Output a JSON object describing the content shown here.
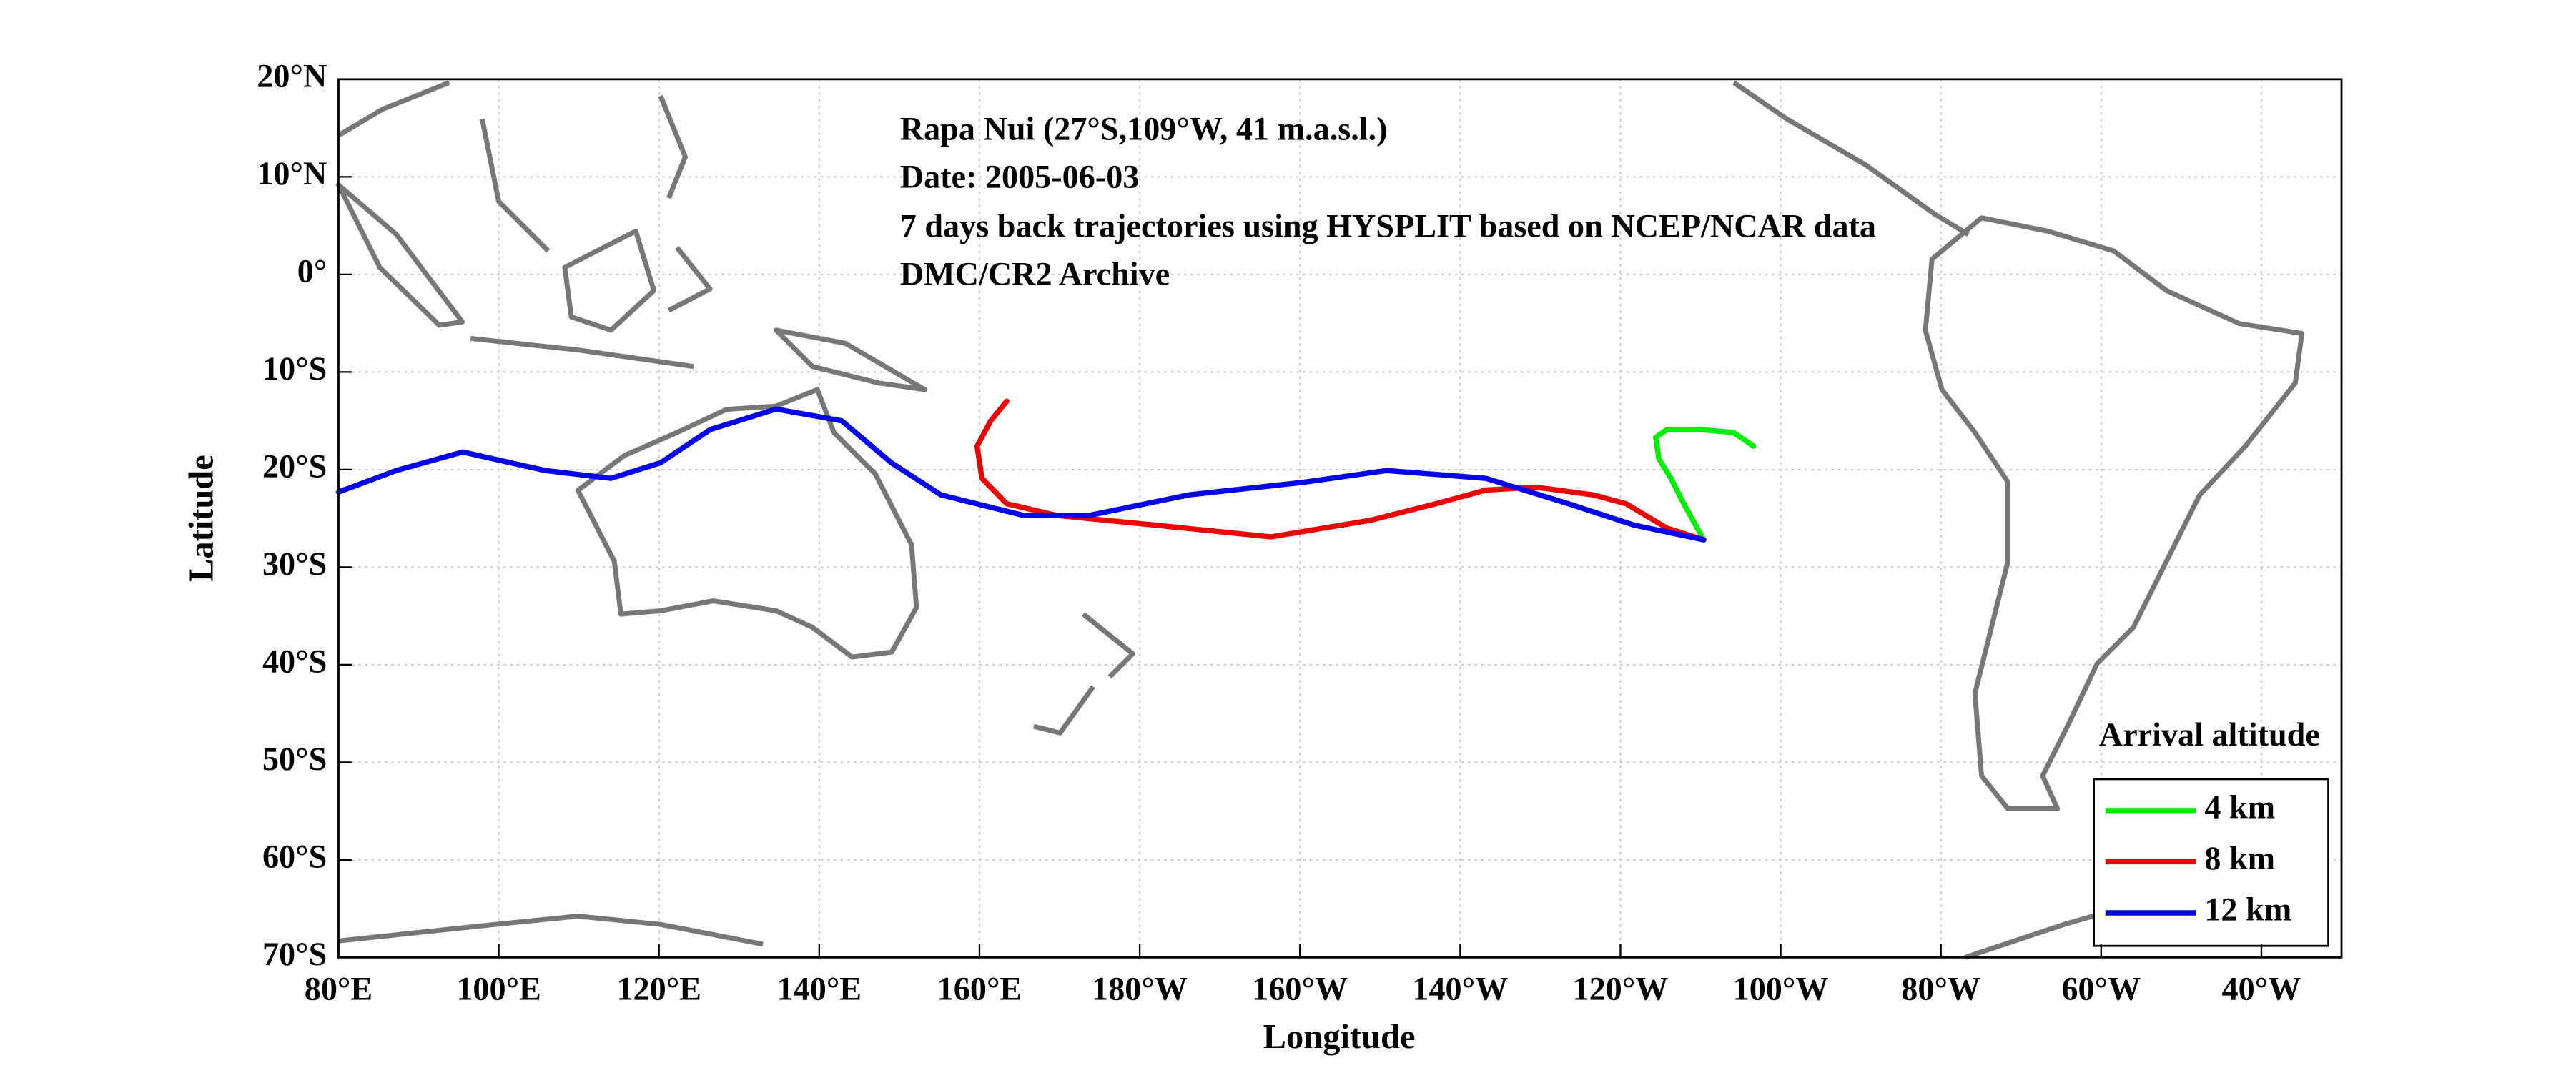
{
  "chart_data": {
    "type": "line",
    "annotations": [
      "Rapa Nui (27°S,109°W, 41 m.a.s.l.)",
      "Date: 2005-06-03",
      "7 days back trajectories using HYSPLIT based on NCEP/NCAR data",
      "DMC/CR2 Archive"
    ],
    "x_label": "Longitude",
    "y_label": "Latitude",
    "legend_title": "Arrival altitude",
    "legend": "lower right",
    "grid": true,
    "xlim": [
      80,
      330
    ],
    "ylim": [
      -70,
      20
    ],
    "xticks": [
      {
        "value": 80,
        "label": "80°E"
      },
      {
        "value": 100,
        "label": "100°E"
      },
      {
        "value": 120,
        "label": "120°E"
      },
      {
        "value": 140,
        "label": "140°E"
      },
      {
        "value": 160,
        "label": "160°E"
      },
      {
        "value": 180,
        "label": "180°W"
      },
      {
        "value": 200,
        "label": "160°W"
      },
      {
        "value": 220,
        "label": "140°W"
      },
      {
        "value": 240,
        "label": "120°W"
      },
      {
        "value": 260,
        "label": "100°W"
      },
      {
        "value": 280,
        "label": "80°W"
      },
      {
        "value": 300,
        "label": "60°W"
      },
      {
        "value": 320,
        "label": "40°W"
      }
    ],
    "yticks": [
      {
        "value": 20,
        "label": "20°N"
      },
      {
        "value": 10,
        "label": "10°N"
      },
      {
        "value": 0,
        "label": "0°"
      },
      {
        "value": -10,
        "label": "10°S"
      },
      {
        "value": -20,
        "label": "20°S"
      },
      {
        "value": -30,
        "label": "30°S"
      },
      {
        "value": -40,
        "label": "40°S"
      },
      {
        "value": -50,
        "label": "50°S"
      },
      {
        "value": -60,
        "label": "60°S"
      },
      {
        "value": -70,
        "label": "70°S"
      }
    ],
    "series": [
      {
        "name": "4 km",
        "color": "#00ee00",
        "x": [
          250.4,
          247.9,
          246.3,
          244.8,
          244.4,
          245.8,
          250.0,
          254.1,
          256.6
        ],
        "values": [
          -27.2,
          -23.5,
          -20.9,
          -18.9,
          -16.7,
          -15.9,
          -15.9,
          -16.2,
          -17.6
        ]
      },
      {
        "name": "8 km",
        "color": "#ee0000",
        "x": [
          250.4,
          245.8,
          240.7,
          236.6,
          229.4,
          223.2,
          217.0,
          208.8,
          196.4,
          182.0,
          169.6,
          163.4,
          160.3,
          159.7,
          161.4,
          163.4
        ],
        "values": [
          -27.2,
          -26.0,
          -23.5,
          -22.6,
          -21.8,
          -22.1,
          -23.5,
          -25.2,
          -26.9,
          -25.7,
          -24.7,
          -23.5,
          -20.9,
          -17.6,
          -15.0,
          -13.0
        ]
      },
      {
        "name": "12 km",
        "color": "#0000ee",
        "x": [
          250.4,
          241.7,
          233.5,
          223.2,
          210.8,
          200.5,
          186.1,
          173.7,
          165.5,
          155.2,
          149.0,
          142.8,
          134.6,
          126.4,
          120.2,
          114.0,
          105.8,
          95.5,
          87.2,
          80.0
        ],
        "values": [
          -27.2,
          -25.7,
          -23.5,
          -20.9,
          -20.1,
          -21.3,
          -22.6,
          -24.7,
          -24.7,
          -22.6,
          -19.3,
          -15.0,
          -13.8,
          -15.9,
          -19.3,
          -20.9,
          -20.1,
          -18.2,
          -20.1,
          -22.3
        ]
      }
    ]
  }
}
